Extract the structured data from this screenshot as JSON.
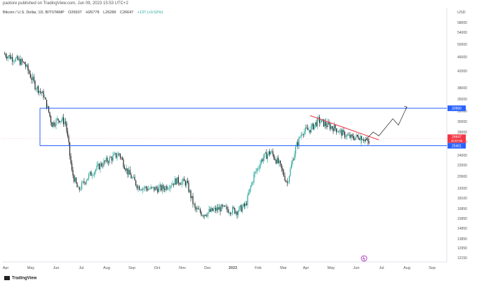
{
  "header": {
    "publish_line": "paotore published on TradingView.com, Jun 09, 2023 15:53 UTC+2"
  },
  "legend": {
    "symbol": "Bitcoin / U.S. Dollar, 1D, BITSTAMP",
    "open": "O26507",
    "high": "H26778",
    "low": "L26289",
    "close": "C26647",
    "change": "+137 (+0.52%)"
  },
  "footer": {
    "brand": "TradingView"
  },
  "colors": {
    "up": "#26a69a",
    "down": "#222222",
    "level": "#2962ff",
    "trend": "#f23645",
    "price_badge": "#f23645"
  },
  "chart_data": {
    "type": "candlestick",
    "currency_label": "USD",
    "y_ticks": [
      "58000",
      "54000",
      "50000",
      "46000",
      "42000",
      "38000",
      "35000",
      "32000",
      "30000",
      "28000",
      "26000",
      "24000",
      "22500",
      "20900",
      "19300",
      "18100",
      "16850",
      "15850",
      "14850",
      "13850",
      "12950",
      "12150"
    ],
    "ylim": [
      12150,
      60000
    ],
    "y_scale": "log",
    "x_ticks": [
      "Apr",
      "May",
      "Jun",
      "Jul",
      "Aug",
      "Sep",
      "Oct",
      "Nov",
      "Dec",
      "2023",
      "Feb",
      "Mar",
      "Apr",
      "May",
      "Jun",
      "Jul",
      "Aug",
      "Sep"
    ],
    "price_path": [
      [
        "Apr",
        47000
      ],
      [
        "Apr",
        44000
      ],
      [
        "May",
        38500
      ],
      [
        "May",
        36000
      ],
      [
        "May",
        29500
      ],
      [
        "Jun",
        30500
      ],
      [
        "Jun",
        29800
      ],
      [
        "Jun",
        21500
      ],
      [
        "Jun",
        19000
      ],
      [
        "Jul",
        20800
      ],
      [
        "Jul",
        22500
      ],
      [
        "Aug",
        23500
      ],
      [
        "Aug",
        24200
      ],
      [
        "Aug",
        21500
      ],
      [
        "Sep",
        19500
      ],
      [
        "Sep",
        19200
      ],
      [
        "Oct",
        19300
      ],
      [
        "Oct",
        20300
      ],
      [
        "Nov",
        20000
      ],
      [
        "Nov",
        16800
      ],
      [
        "Nov",
        16300
      ],
      [
        "Dec",
        16900
      ],
      [
        "2023",
        16600
      ],
      [
        "2023",
        17200
      ],
      [
        "2023",
        21000
      ],
      [
        "Feb",
        23500
      ],
      [
        "Feb",
        24500
      ],
      [
        "Feb",
        22600
      ],
      [
        "Mar",
        20000
      ],
      [
        "Mar",
        24500
      ],
      [
        "Mar",
        28000
      ],
      [
        "Apr",
        28500
      ],
      [
        "Apr",
        30200
      ],
      [
        "Apr",
        29300
      ],
      [
        "May",
        28700
      ],
      [
        "May",
        27500
      ],
      [
        "May",
        26800
      ],
      [
        "Jun",
        27100
      ],
      [
        "Jun",
        25800
      ],
      [
        "Jun",
        26647
      ]
    ],
    "levels": [
      {
        "name": "resistance",
        "value": 32650,
        "label": "32650"
      },
      {
        "name": "support",
        "value": 25401,
        "label": "25401"
      }
    ],
    "last_price": {
      "value": 26647,
      "label": "26647",
      "sub_label": "10:57:05"
    },
    "trendline": {
      "from": [
        "Apr",
        31100
      ],
      "to": [
        "Jul",
        26400
      ]
    },
    "projection": [
      [
        "Jun",
        26200
      ],
      [
        "Jun",
        28000
      ],
      [
        "Jul",
        27200
      ],
      [
        "Jul",
        30500
      ],
      [
        "Jul",
        29300
      ],
      [
        "Aug",
        33000
      ]
    ]
  }
}
